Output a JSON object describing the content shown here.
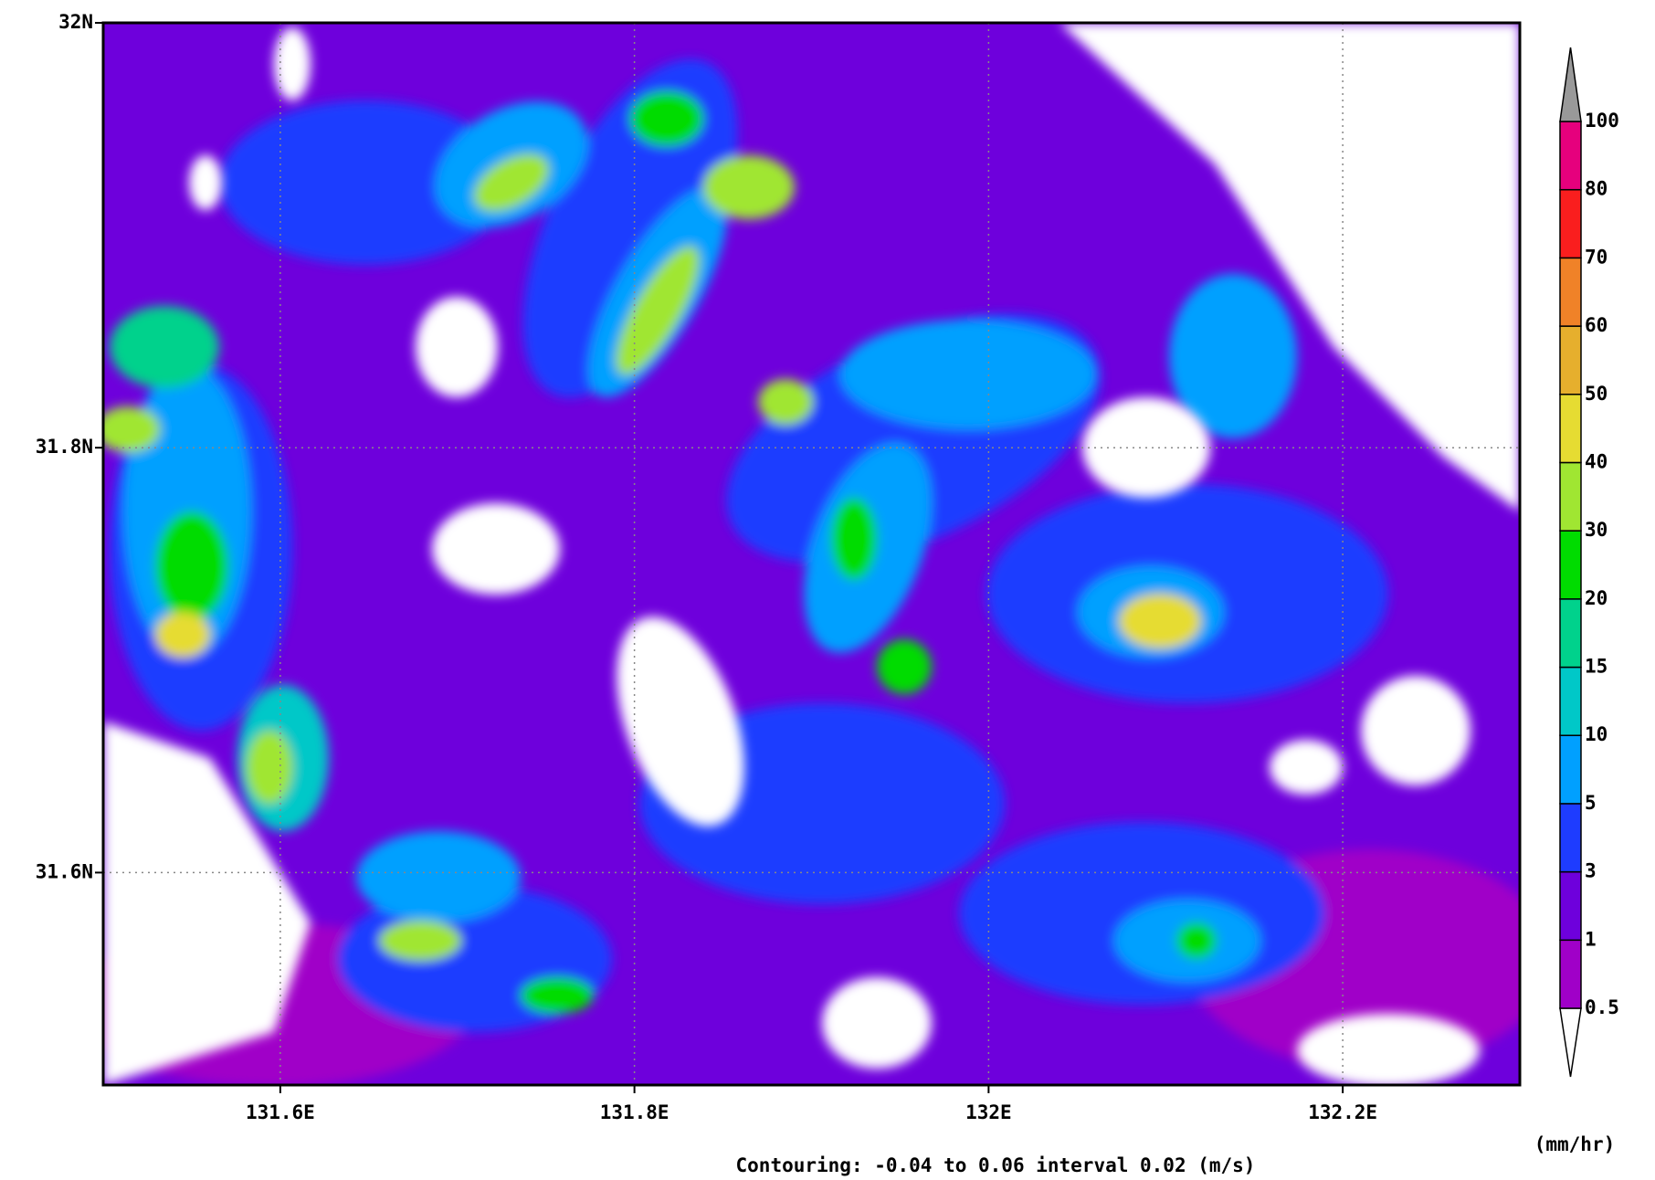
{
  "chart_data": {
    "type": "contour-map",
    "xlim": [
      131.5,
      132.3
    ],
    "ylim": [
      31.5,
      32
    ],
    "xticks": [
      {
        "value": 131.6,
        "label": "131.6E"
      },
      {
        "value": 131.8,
        "label": "131.8E"
      },
      {
        "value": 132,
        "label": "132E"
      },
      {
        "value": 132.2,
        "label": "132.2E"
      }
    ],
    "yticks": [
      {
        "value": 31.6,
        "label": "31.6N"
      },
      {
        "value": 31.8,
        "label": "31.8N"
      },
      {
        "value": 32,
        "label": "32N"
      }
    ],
    "grid": true,
    "colorbar": {
      "levels": [
        0.5,
        1,
        3,
        5,
        10,
        15,
        20,
        30,
        40,
        50,
        60,
        70,
        80,
        100
      ],
      "colors": [
        "#ffffff",
        "#a000c8",
        "#6e00dc",
        "#1e3cff",
        "#00a0ff",
        "#00c8c8",
        "#00d28c",
        "#00dc00",
        "#a0e632",
        "#e6dc32",
        "#e6af2d",
        "#f08228",
        "#fa1e1e",
        "#e6007d",
        "#999999"
      ],
      "unit": "(mm/hr)"
    },
    "footer": "Contouring: -0.04 to 0.06 interval 0.02  (m/s)"
  }
}
